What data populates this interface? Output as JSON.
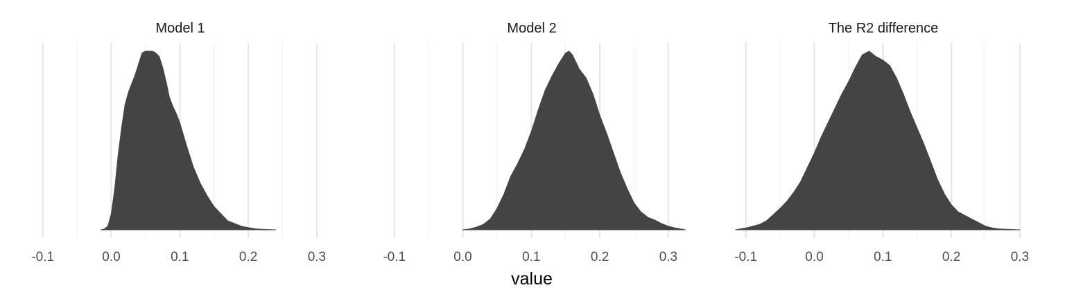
{
  "figure": {
    "xlabel": "value",
    "fill_color": "#444444",
    "major_grid_color": "#e6e6e6",
    "minor_grid_color": "#f0f0f0"
  },
  "chart_data": [
    {
      "type": "area",
      "title": "Model 1",
      "xlabel": "value",
      "ylabel": "",
      "grid": "vertical",
      "x_ticks": [
        "-0.1",
        "0.0",
        "0.1",
        "0.2",
        "0.3"
      ],
      "xlim": [
        -0.12,
        0.33
      ],
      "series": [
        {
          "x": [
            -0.015,
            -0.01,
            -0.005,
            0.0,
            0.005,
            0.01,
            0.015,
            0.02,
            0.025,
            0.03,
            0.035,
            0.04,
            0.045,
            0.05,
            0.055,
            0.06,
            0.065,
            0.07,
            0.075,
            0.08,
            0.085,
            0.09,
            0.095,
            0.1,
            0.11,
            0.12,
            0.13,
            0.14,
            0.15,
            0.16,
            0.17,
            0.18,
            0.19,
            0.2,
            0.21,
            0.22,
            0.24
          ],
          "y": [
            0.0,
            0.005,
            0.02,
            0.09,
            0.23,
            0.42,
            0.57,
            0.7,
            0.77,
            0.82,
            0.87,
            0.93,
            0.99,
            1.0,
            1.0,
            1.0,
            0.99,
            0.97,
            0.91,
            0.83,
            0.74,
            0.69,
            0.65,
            0.6,
            0.47,
            0.35,
            0.26,
            0.19,
            0.13,
            0.09,
            0.05,
            0.035,
            0.02,
            0.012,
            0.006,
            0.003,
            0.0
          ]
        }
      ]
    },
    {
      "type": "area",
      "title": "Model 2",
      "xlabel": "value",
      "ylabel": "",
      "grid": "vertical",
      "x_ticks": [
        "-0.1",
        "0.0",
        "0.1",
        "0.2",
        "0.3"
      ],
      "xlim": [
        -0.12,
        0.33
      ],
      "series": [
        {
          "x": [
            0.0,
            0.01,
            0.02,
            0.03,
            0.04,
            0.05,
            0.06,
            0.07,
            0.08,
            0.09,
            0.1,
            0.11,
            0.12,
            0.13,
            0.14,
            0.15,
            0.155,
            0.16,
            0.17,
            0.18,
            0.19,
            0.2,
            0.21,
            0.22,
            0.23,
            0.24,
            0.25,
            0.26,
            0.27,
            0.28,
            0.29,
            0.3,
            0.31,
            0.325
          ],
          "y": [
            0.0,
            0.005,
            0.015,
            0.03,
            0.06,
            0.12,
            0.2,
            0.3,
            0.37,
            0.45,
            0.55,
            0.67,
            0.78,
            0.86,
            0.93,
            0.99,
            1.0,
            0.98,
            0.9,
            0.85,
            0.76,
            0.64,
            0.54,
            0.43,
            0.32,
            0.23,
            0.15,
            0.1,
            0.07,
            0.055,
            0.035,
            0.02,
            0.01,
            0.0
          ]
        }
      ]
    },
    {
      "type": "area",
      "title": "The R2 difference",
      "xlabel": "value",
      "ylabel": "",
      "grid": "vertical",
      "x_ticks": [
        "-0.1",
        "0.0",
        "0.1",
        "0.2",
        "0.3"
      ],
      "xlim": [
        -0.12,
        0.33
      ],
      "series": [
        {
          "x": [
            -0.115,
            -0.1,
            -0.09,
            -0.08,
            -0.07,
            -0.06,
            -0.05,
            -0.04,
            -0.03,
            -0.02,
            -0.01,
            0.0,
            0.01,
            0.02,
            0.03,
            0.04,
            0.05,
            0.06,
            0.07,
            0.08,
            0.09,
            0.1,
            0.11,
            0.12,
            0.13,
            0.14,
            0.15,
            0.16,
            0.17,
            0.18,
            0.19,
            0.2,
            0.21,
            0.22,
            0.23,
            0.24,
            0.25,
            0.26,
            0.27,
            0.3
          ],
          "y": [
            0.0,
            0.01,
            0.02,
            0.03,
            0.05,
            0.085,
            0.12,
            0.16,
            0.21,
            0.27,
            0.35,
            0.43,
            0.52,
            0.6,
            0.68,
            0.76,
            0.83,
            0.91,
            0.98,
            1.0,
            0.97,
            0.95,
            0.92,
            0.85,
            0.76,
            0.66,
            0.57,
            0.48,
            0.38,
            0.28,
            0.2,
            0.14,
            0.1,
            0.08,
            0.06,
            0.04,
            0.02,
            0.01,
            0.005,
            0.0
          ]
        }
      ]
    }
  ]
}
